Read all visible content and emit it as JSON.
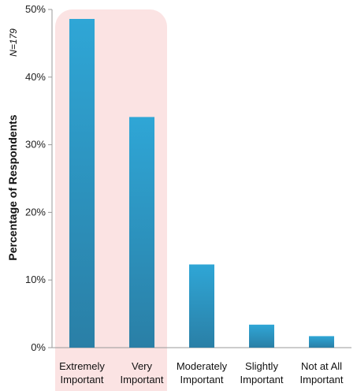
{
  "chart_data": {
    "type": "bar",
    "categories": [
      [
        "Extremely",
        "Important"
      ],
      [
        "Very",
        "Important"
      ],
      [
        "Moderately",
        "Important"
      ],
      [
        "Slightly",
        "Important"
      ],
      [
        "Not at All",
        "Important"
      ]
    ],
    "values": [
      48.6,
      34.1,
      12.3,
      3.4,
      1.7
    ],
    "ylabel": "Percentage of Respondents",
    "annotation": "N=179",
    "ylim": [
      0,
      50
    ],
    "yticks": [
      "0%",
      "10%",
      "20%",
      "30%",
      "40%",
      "50%"
    ],
    "highlighted_categories": [
      0,
      1
    ],
    "colors": {
      "bar_top": "#2fa6d6",
      "bar_bottom": "#2a7fa6",
      "highlight": "#fbe3e3",
      "axis": "#999999"
    }
  }
}
